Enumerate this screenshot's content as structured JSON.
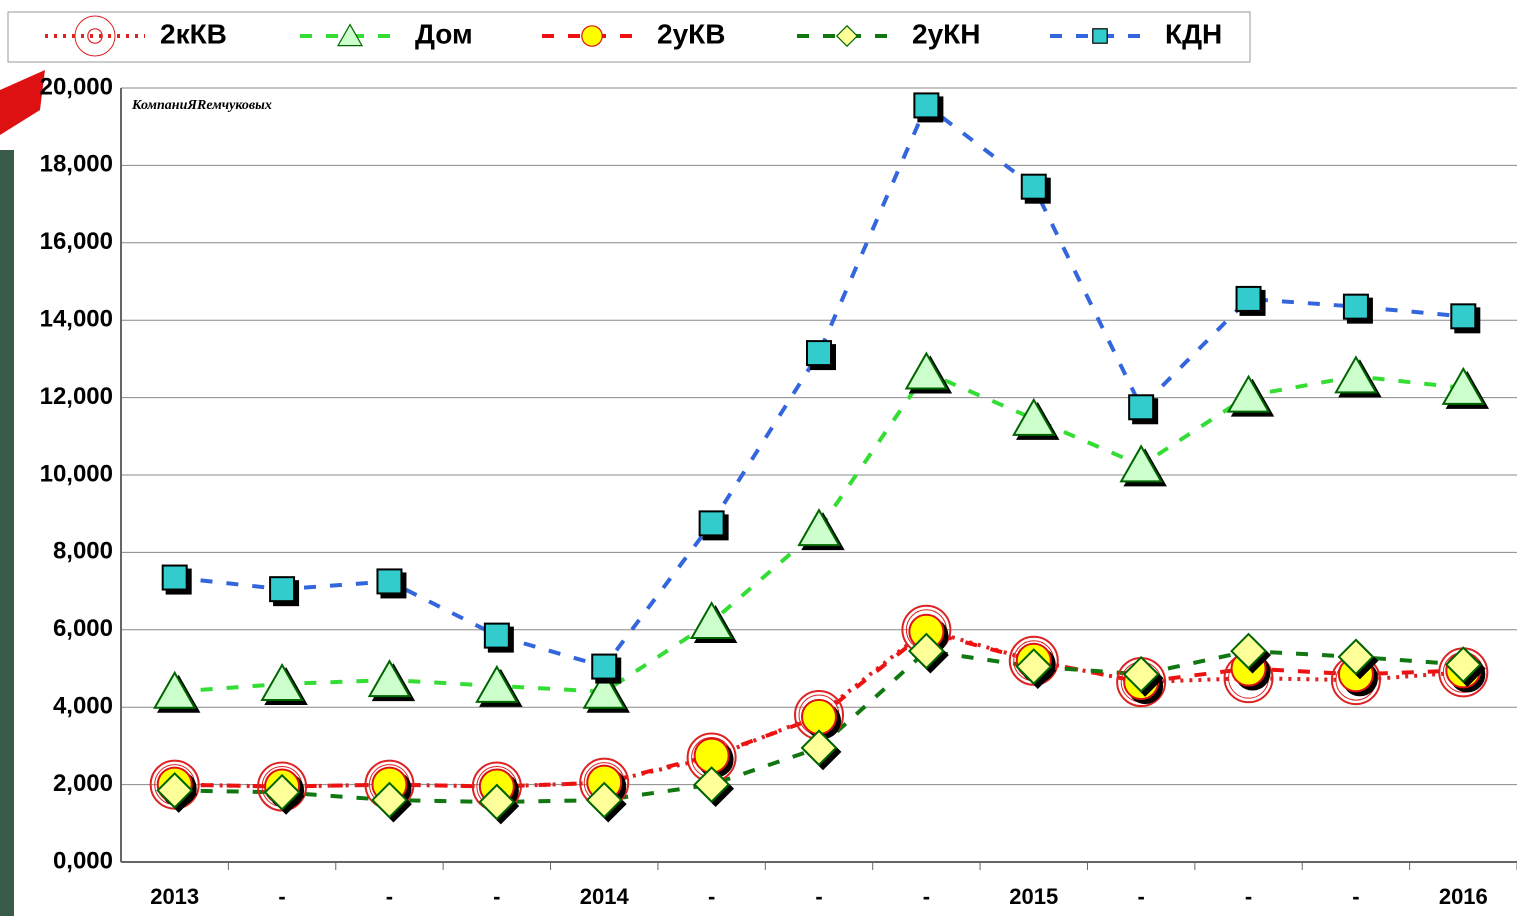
{
  "chart_data": {
    "type": "line",
    "annotation": "КомпаниЯRемчуковых",
    "categories": [
      "2013",
      "-",
      "-",
      "-",
      "2014",
      "-",
      "-",
      "-",
      "2015",
      "-",
      "-",
      "-",
      "2016"
    ],
    "series": [
      {
        "name": "2кКВ",
        "color": "#dd2222",
        "fill": "none",
        "marker": "ring",
        "dash": "dotted",
        "values": [
          2000,
          1950,
          2000,
          1950,
          2050,
          2700,
          3800,
          6000,
          5200,
          4650,
          4750,
          4700,
          4900
        ]
      },
      {
        "name": "Дом",
        "color": "#33dd33",
        "fill": "#ccffcc",
        "marker": "triangle",
        "dash": "dashed",
        "values": [
          4400,
          4600,
          4700,
          4550,
          4400,
          6200,
          8600,
          12650,
          11450,
          10250,
          12050,
          12550,
          12250
        ]
      },
      {
        "name": "2уКВ",
        "color": "#ee1111",
        "fill": "#ffff00",
        "marker": "circle",
        "dash": "dashed",
        "values": [
          2000,
          1950,
          2000,
          1950,
          2050,
          2750,
          3750,
          5950,
          5200,
          4650,
          5000,
          4850,
          4950
        ]
      },
      {
        "name": "2уКН",
        "color": "#117711",
        "fill": "#ffff99",
        "marker": "diamond",
        "dash": "dashed",
        "values": [
          1850,
          1800,
          1600,
          1550,
          1600,
          2000,
          2950,
          5450,
          5050,
          4850,
          5450,
          5300,
          5100
        ]
      },
      {
        "name": "КДН",
        "color": "#3366dd",
        "fill": "#33cccc",
        "marker": "square",
        "dash": "dashed",
        "values": [
          7350,
          7050,
          7250,
          5850,
          5050,
          8750,
          13150,
          19550,
          17450,
          11750,
          14550,
          14350,
          14100
        ]
      }
    ],
    "ylim": [
      0,
      20000
    ],
    "yticks": [
      {
        "value": 0,
        "label": "0,000"
      },
      {
        "value": 2000,
        "label": "2,000"
      },
      {
        "value": 4000,
        "label": "4,000"
      },
      {
        "value": 6000,
        "label": "6,000"
      },
      {
        "value": 8000,
        "label": "8,000"
      },
      {
        "value": 10000,
        "label": "10,000"
      },
      {
        "value": 12000,
        "label": "12,000"
      },
      {
        "value": 14000,
        "label": "14,000"
      },
      {
        "value": 16000,
        "label": "16,000"
      },
      {
        "value": 18000,
        "label": "18,000"
      },
      {
        "value": 20000,
        "label": "20,000"
      }
    ],
    "grid": true
  }
}
